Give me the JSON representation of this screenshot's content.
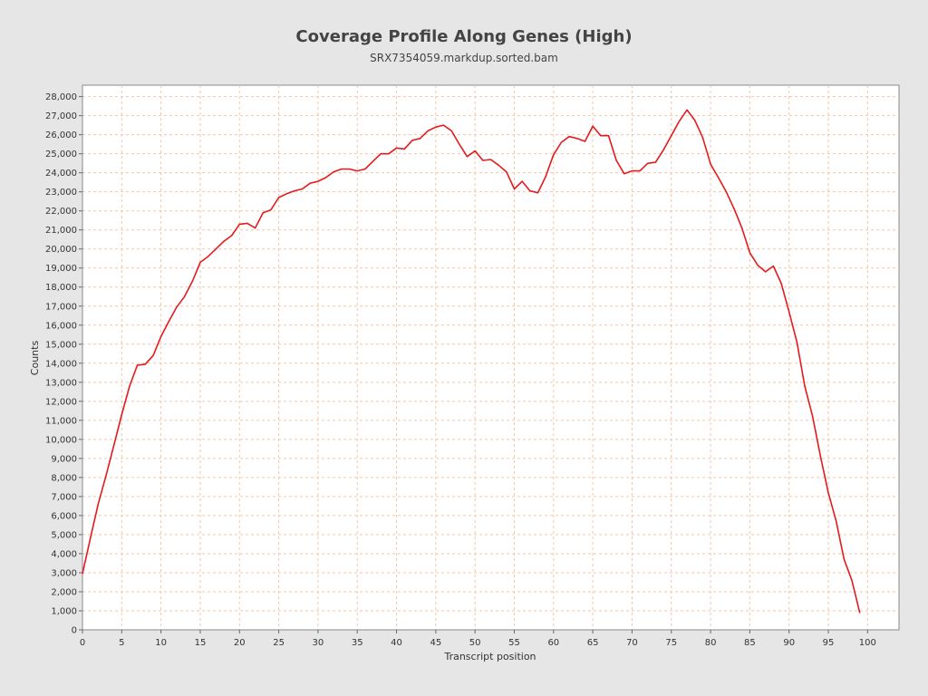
{
  "chart_data": {
    "type": "line",
    "title": "Coverage Profile Along Genes (High)",
    "subtitle": "SRX7354059.markdup.sorted.bam",
    "xlabel": "Transcript position",
    "ylabel": "Counts",
    "xlim": [
      0,
      104
    ],
    "ylim": [
      0,
      28600
    ],
    "xticks": [
      0,
      5,
      10,
      15,
      20,
      25,
      30,
      35,
      40,
      45,
      50,
      55,
      60,
      65,
      70,
      75,
      80,
      85,
      90,
      95,
      100
    ],
    "xtick_labels": [
      "0",
      "5",
      "10",
      "15",
      "20",
      "25",
      "30",
      "35",
      "40",
      "45",
      "50",
      "55",
      "60",
      "65",
      "70",
      "75",
      "80",
      "85",
      "90",
      "95",
      "100"
    ],
    "yticks": [
      0,
      1000,
      2000,
      3000,
      4000,
      5000,
      6000,
      7000,
      8000,
      9000,
      10000,
      11000,
      12000,
      13000,
      14000,
      15000,
      16000,
      17000,
      18000,
      19000,
      20000,
      21000,
      22000,
      23000,
      24000,
      25000,
      26000,
      27000,
      28000
    ],
    "ytick_labels": [
      "0",
      "1,000",
      "2,000",
      "3,000",
      "4,000",
      "5,000",
      "6,000",
      "7,000",
      "8,000",
      "9,000",
      "10,000",
      "11,000",
      "12,000",
      "13,000",
      "14,000",
      "15,000",
      "16,000",
      "17,000",
      "18,000",
      "19,000",
      "20,000",
      "21,000",
      "22,000",
      "23,000",
      "24,000",
      "25,000",
      "26,000",
      "27,000",
      "28,000"
    ],
    "grid": true,
    "series": [
      {
        "color": "#e41a1c",
        "x": [
          0,
          1,
          2,
          3,
          4,
          5,
          6,
          7,
          8,
          9,
          10,
          11,
          12,
          13,
          14,
          15,
          16,
          17,
          18,
          19,
          20,
          21,
          22,
          23,
          24,
          25,
          26,
          27,
          28,
          29,
          30,
          31,
          32,
          33,
          34,
          35,
          36,
          37,
          38,
          39,
          40,
          41,
          42,
          43,
          44,
          45,
          46,
          47,
          48,
          49,
          50,
          51,
          52,
          53,
          54,
          55,
          56,
          57,
          58,
          59,
          60,
          61,
          62,
          63,
          64,
          65,
          66,
          67,
          68,
          69,
          70,
          71,
          72,
          73,
          74,
          75,
          76,
          77,
          78,
          79,
          80,
          81,
          82,
          83,
          84,
          85,
          86,
          87,
          88,
          89,
          90,
          91,
          92,
          93,
          94,
          95,
          96,
          97,
          98,
          99
        ],
        "values": [
          2950,
          4800,
          6600,
          8100,
          9700,
          11300,
          12800,
          13900,
          13950,
          14400,
          15400,
          16200,
          16950,
          17500,
          18300,
          19300,
          19600,
          20000,
          20400,
          20700,
          21300,
          21350,
          21100,
          21900,
          22050,
          22700,
          22900,
          23050,
          23150,
          23450,
          23550,
          23750,
          24050,
          24200,
          24200,
          24100,
          24200,
          24600,
          25000,
          25000,
          25300,
          25250,
          25700,
          25800,
          26200,
          26400,
          26500,
          26200,
          25500,
          24850,
          25150,
          24650,
          24700,
          24400,
          24050,
          23150,
          23550,
          23050,
          22950,
          23800,
          24950,
          25600,
          25900,
          25800,
          25650,
          26450,
          25950,
          25950,
          24650,
          23950,
          24100,
          24100,
          24500,
          24550,
          25200,
          25950,
          26700,
          27300,
          26750,
          25850,
          24450,
          23750,
          23000,
          22100,
          21100,
          19800,
          19150,
          18800,
          19100,
          18200,
          16700,
          15100,
          12800,
          11200,
          9100,
          7200,
          5700,
          3700,
          2600,
          900
        ]
      }
    ]
  }
}
